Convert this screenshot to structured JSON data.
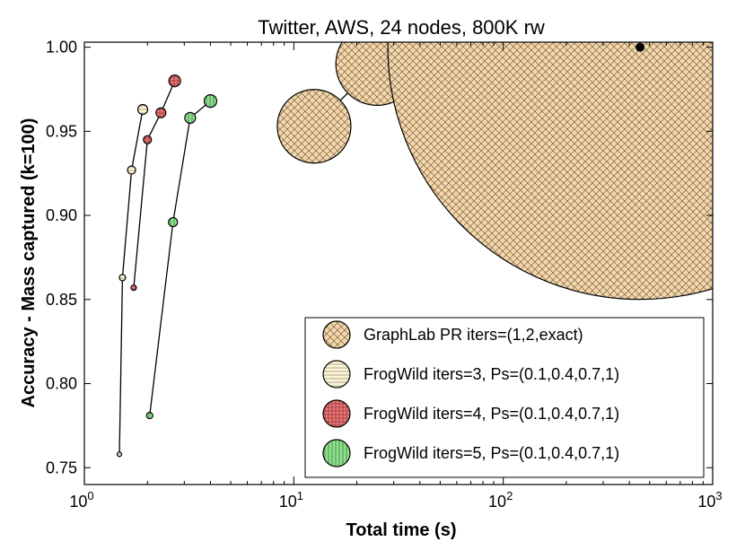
{
  "chart_data": {
    "type": "scatter",
    "title": "Twitter, AWS, 24 nodes, 800K rw",
    "xlabel": "Total time (s)",
    "ylabel": "Accuracy - Mass captured (k=100)",
    "xscale": "log",
    "xlim": [
      1,
      1000
    ],
    "ylim": [
      0.74,
      1.003
    ],
    "xticks": [
      {
        "value": 1,
        "base": "10",
        "exp": "0"
      },
      {
        "value": 10,
        "base": "10",
        "exp": "1"
      },
      {
        "value": 100,
        "base": "10",
        "exp": "2"
      },
      {
        "value": 1000,
        "base": "10",
        "exp": "3"
      }
    ],
    "yticks": [
      0.75,
      0.8,
      0.85,
      0.9,
      0.95,
      1.0
    ],
    "ytick_labels": [
      "0.75",
      "0.80",
      "0.85",
      "0.90",
      "0.95",
      "1.00"
    ],
    "legend_position": "lower-right",
    "series": [
      {
        "name": "GraphLab PR iters=(1,2,exact)",
        "color": "#f5d6a8",
        "hatch": "crosshatch",
        "points": [
          {
            "x": 12.5,
            "y": 0.953,
            "size": 41
          },
          {
            "x": 25,
            "y": 0.99,
            "size": 46
          },
          {
            "x": 450,
            "y": 1.0,
            "size": 281
          }
        ]
      },
      {
        "name": "FrogWild iters=3, Ps=(0.1,0.4,0.7,1)",
        "color": "#fdf6d3",
        "hatch": "horizontal",
        "points": [
          {
            "x": 1.47,
            "y": 0.758,
            "size": 2.5
          },
          {
            "x": 1.52,
            "y": 0.863,
            "size": 3.5
          },
          {
            "x": 1.68,
            "y": 0.927,
            "size": 4.5
          },
          {
            "x": 1.9,
            "y": 0.963,
            "size": 5.5
          }
        ]
      },
      {
        "name": "FrogWild iters=4, Ps=(0.1,0.4,0.7,1)",
        "color": "#ef7676",
        "hatch": "grid",
        "points": [
          {
            "x": 1.72,
            "y": 0.857,
            "size": 3
          },
          {
            "x": 2.0,
            "y": 0.945,
            "size": 4.5
          },
          {
            "x": 2.32,
            "y": 0.961,
            "size": 5.5
          },
          {
            "x": 2.7,
            "y": 0.98,
            "size": 6.5
          }
        ]
      },
      {
        "name": "FrogWild iters=5, Ps=(0.1,0.4,0.7,1)",
        "color": "#8ee08e",
        "hatch": "vertical",
        "points": [
          {
            "x": 2.05,
            "y": 0.781,
            "size": 3.5
          },
          {
            "x": 2.65,
            "y": 0.896,
            "size": 5
          },
          {
            "x": 3.2,
            "y": 0.958,
            "size": 6
          },
          {
            "x": 4.0,
            "y": 0.968,
            "size": 7
          }
        ]
      }
    ],
    "annotations": [
      {
        "type": "marker",
        "x": 450,
        "y": 1.0,
        "color": "#000000",
        "label": ""
      }
    ]
  }
}
